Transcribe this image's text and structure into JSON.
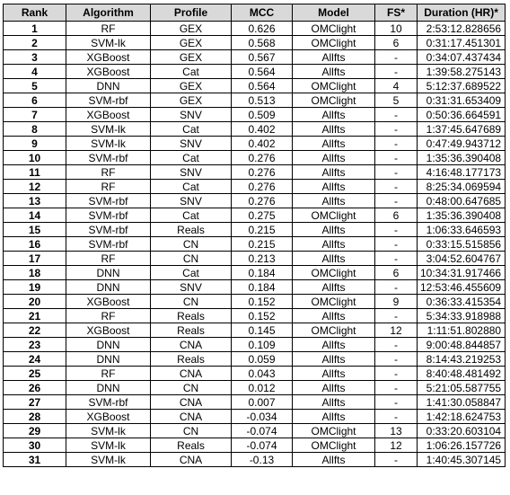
{
  "table": {
    "headers": [
      "Rank",
      "Algorithm",
      "Profile",
      "MCC",
      "Model",
      "FS*",
      "Duration (HR)*"
    ],
    "rows": [
      [
        "1",
        "RF",
        "GEX",
        "0.626",
        "OMClight",
        "10",
        "2:53:12.828656"
      ],
      [
        "2",
        "SVM-lk",
        "GEX",
        "0.568",
        "OMClight",
        "6",
        "0:31:17.451301"
      ],
      [
        "3",
        "XGBoost",
        "GEX",
        "0.567",
        "Allfts",
        "-",
        "0:34:07.437434"
      ],
      [
        "4",
        "XGBoost",
        "Cat",
        "0.564",
        "Allfts",
        "-",
        "1:39:58.275143"
      ],
      [
        "5",
        "DNN",
        "GEX",
        "0.564",
        "OMClight",
        "4",
        "5:12:37.689522"
      ],
      [
        "6",
        "SVM-rbf",
        "GEX",
        "0.513",
        "OMClight",
        "5",
        "0:31:31.653409"
      ],
      [
        "7",
        "XGBoost",
        "SNV",
        "0.509",
        "Allfts",
        "-",
        "0:50:36.664591"
      ],
      [
        "8",
        "SVM-lk",
        "Cat",
        "0.402",
        "Allfts",
        "-",
        "1:37:45.647689"
      ],
      [
        "9",
        "SVM-lk",
        "SNV",
        "0.402",
        "Allfts",
        "-",
        "0:47:49.943712"
      ],
      [
        "10",
        "SVM-rbf",
        "Cat",
        "0.276",
        "Allfts",
        "-",
        "1:35:36.390408"
      ],
      [
        "11",
        "RF",
        "SNV",
        "0.276",
        "Allfts",
        "-",
        "4:16:48.177173"
      ],
      [
        "12",
        "RF",
        "Cat",
        "0.276",
        "Allfts",
        "-",
        "8:25:34.069594"
      ],
      [
        "13",
        "SVM-rbf",
        "SNV",
        "0.276",
        "Allfts",
        "-",
        "0:48:00.647685"
      ],
      [
        "14",
        "SVM-rbf",
        "Cat",
        "0.275",
        "OMClight",
        "6",
        "1:35:36.390408"
      ],
      [
        "15",
        "SVM-rbf",
        "Reals",
        "0.215",
        "Allfts",
        "-",
        "1:06:33.646593"
      ],
      [
        "16",
        "SVM-rbf",
        "CN",
        "0.215",
        "Allfts",
        "-",
        "0:33:15.515856"
      ],
      [
        "17",
        "RF",
        "CN",
        "0.213",
        "Allfts",
        "-",
        "3:04:52.604767"
      ],
      [
        "18",
        "DNN",
        "Cat",
        "0.184",
        "OMClight",
        "6",
        "10:34:31.917466"
      ],
      [
        "19",
        "DNN",
        "SNV",
        "0.184",
        "Allfts",
        "-",
        "12:53:46.455609"
      ],
      [
        "20",
        "XGBoost",
        "CN",
        "0.152",
        "OMClight",
        "9",
        "0:36:33.415354"
      ],
      [
        "21",
        "RF",
        "Reals",
        "0.152",
        "Allfts",
        "-",
        "5:34:33.918988"
      ],
      [
        "22",
        "XGBoost",
        "Reals",
        "0.145",
        "OMClight",
        "12",
        "1:11:51.802880"
      ],
      [
        "23",
        "DNN",
        "CNA",
        "0.109",
        "Allfts",
        "-",
        "9:00:48.844857"
      ],
      [
        "24",
        "DNN",
        "Reals",
        "0.059",
        "Allfts",
        "-",
        "8:14:43.219253"
      ],
      [
        "25",
        "RF",
        "CNA",
        "0.043",
        "Allfts",
        "-",
        "8:40:48.481492"
      ],
      [
        "26",
        "DNN",
        "CN",
        "0.012",
        "Allfts",
        "-",
        "5:21:05.587755"
      ],
      [
        "27",
        "SVM-rbf",
        "CNA",
        "0.007",
        "Allfts",
        "-",
        "1:41:30.058847"
      ],
      [
        "28",
        "XGBoost",
        "CNA",
        "-0.034",
        "Allfts",
        "-",
        "1:42:18.624753"
      ],
      [
        "29",
        "SVM-lk",
        "CN",
        "-0.074",
        "OMClight",
        "13",
        "0:33:20.603104"
      ],
      [
        "30",
        "SVM-lk",
        "Reals",
        "-0.074",
        "OMClight",
        "12",
        "1:06:26.157726"
      ],
      [
        "31",
        "SVM-lk",
        "CNA",
        "-0.13",
        "Allfts",
        "-",
        "1:40:45.307145"
      ]
    ]
  }
}
